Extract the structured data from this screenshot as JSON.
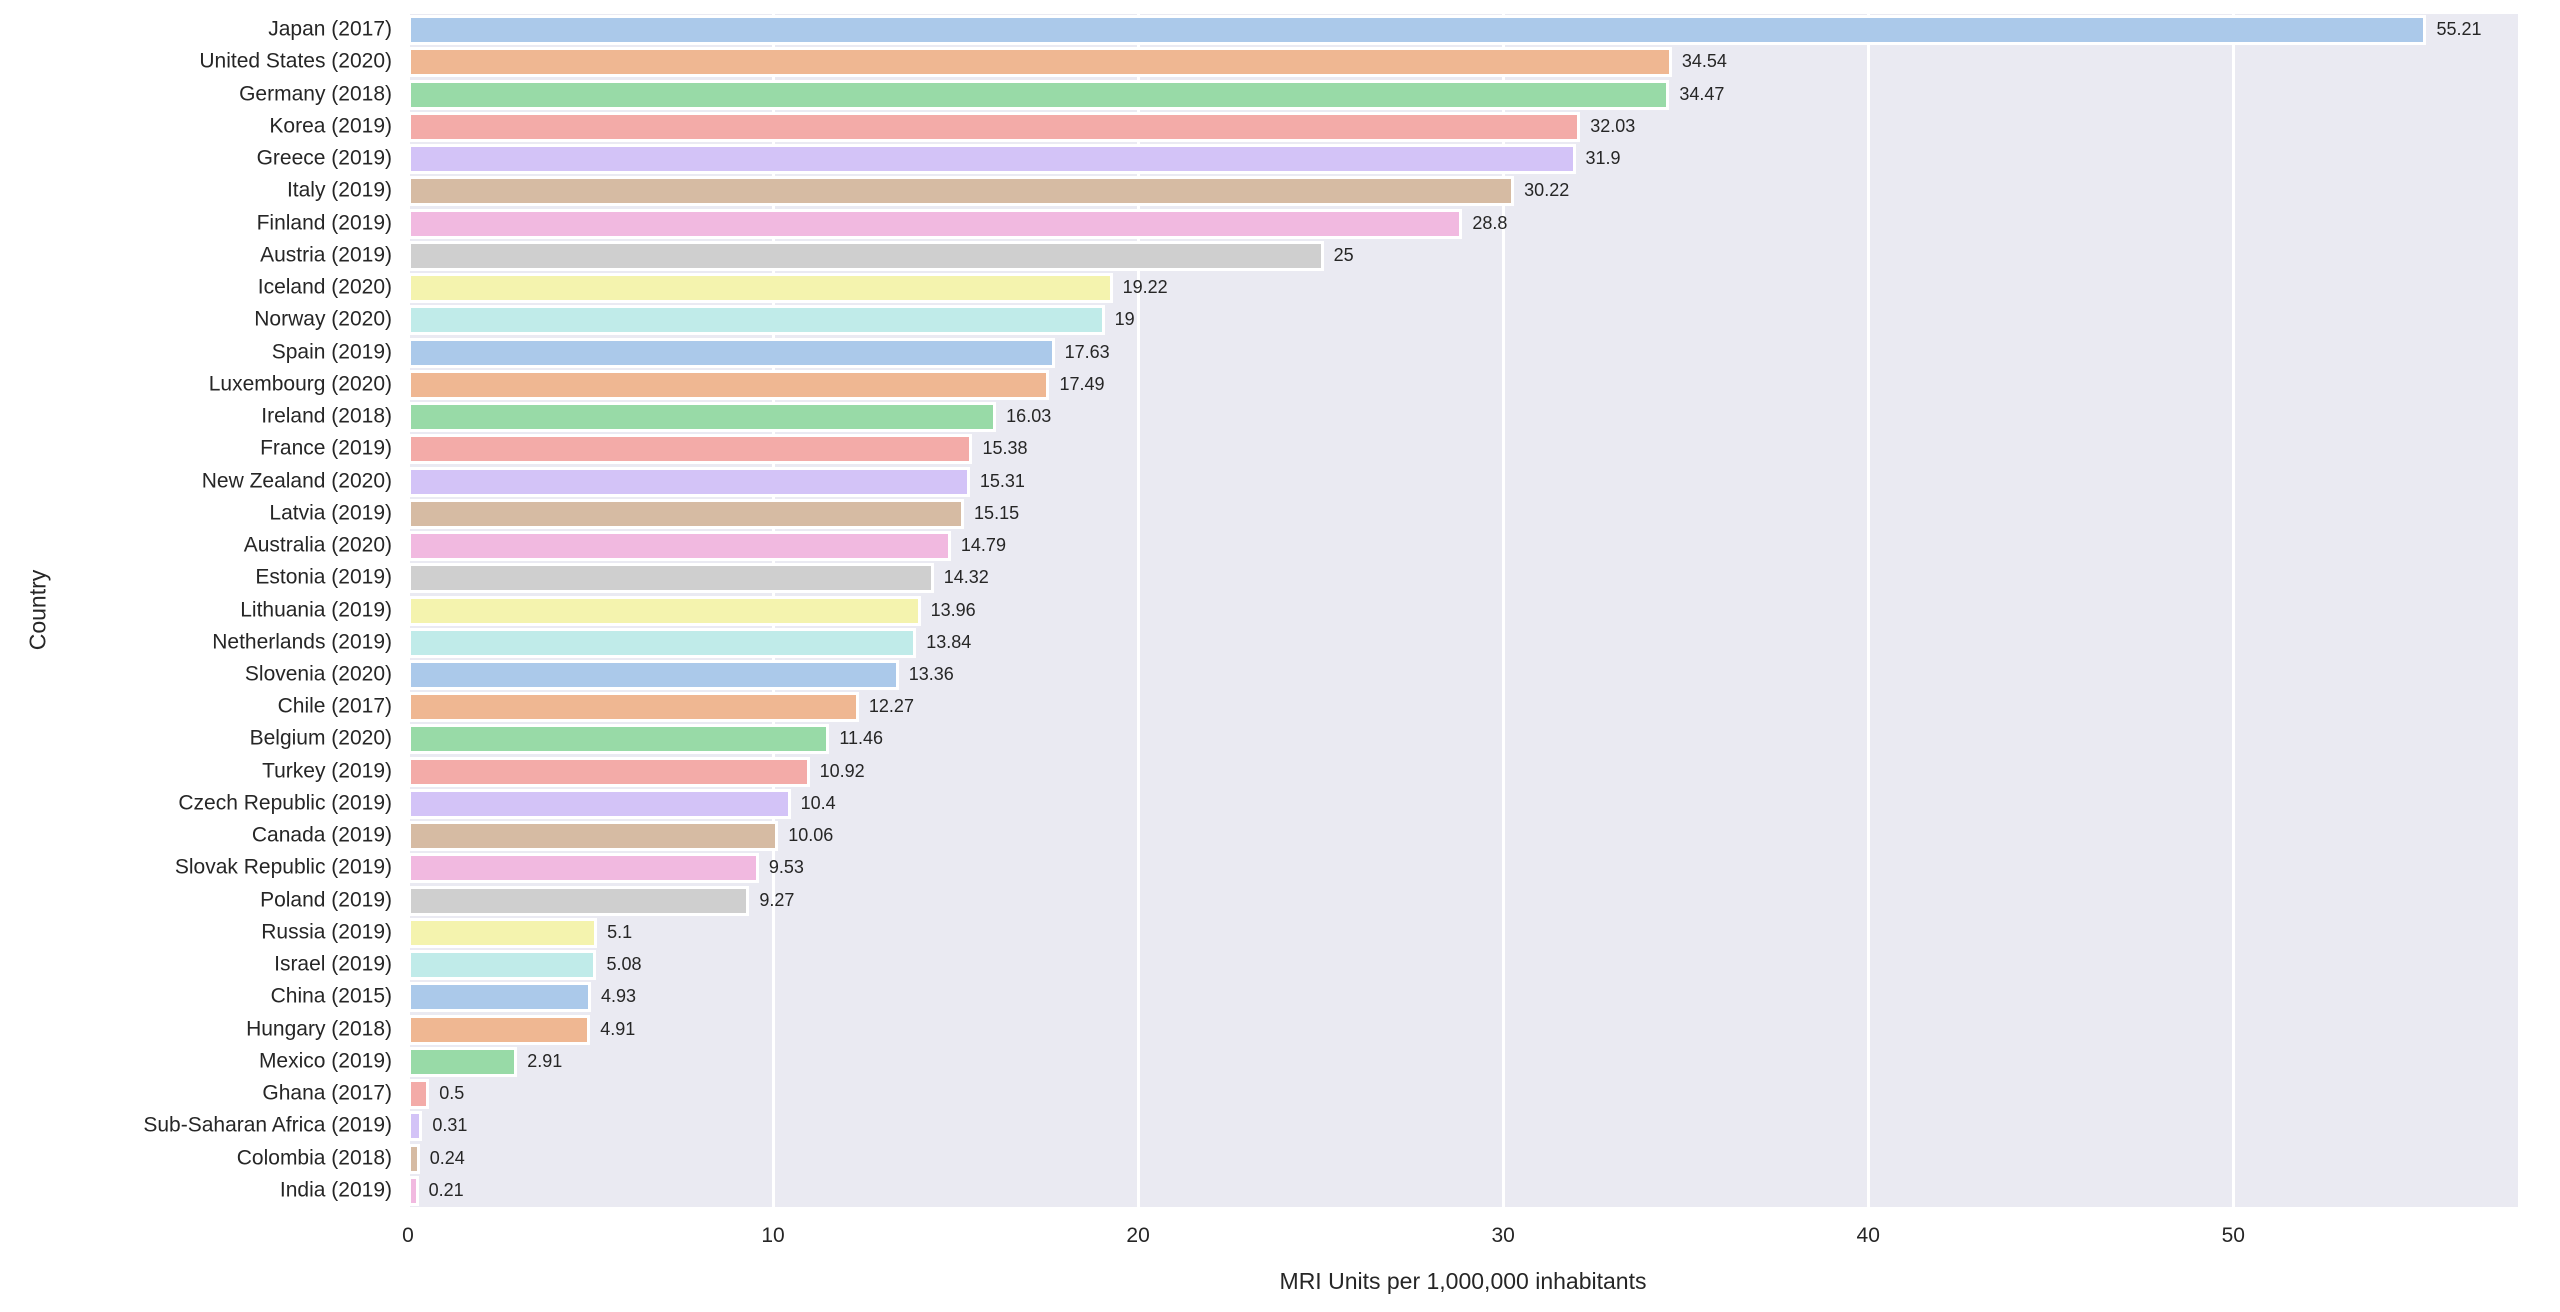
{
  "figure": {
    "background": "#ffffff",
    "plot_background": "#eaeaf2",
    "grid_color": "#ffffff",
    "text_color": "#262626",
    "bar_edge_color": "#ffffff"
  },
  "chart_data": {
    "type": "bar",
    "orientation": "horizontal",
    "title": "",
    "xlabel": "MRI Units per 1,000,000 inhabitants",
    "ylabel": "Country",
    "grid": true,
    "legend": false,
    "x_ticks": [
      0,
      10,
      20,
      30,
      40,
      50
    ],
    "xlim": [
      0,
      57.8
    ],
    "categories": [
      "Japan (2017)",
      "United States (2020)",
      "Germany (2018)",
      "Korea (2019)",
      "Greece (2019)",
      "Italy (2019)",
      "Finland (2019)",
      "Austria (2019)",
      "Iceland (2020)",
      "Norway (2020)",
      "Spain (2019)",
      "Luxembourg (2020)",
      "Ireland (2018)",
      "France (2019)",
      "New Zealand (2020)",
      "Latvia (2019)",
      "Australia (2020)",
      "Estonia (2019)",
      "Lithuania (2019)",
      "Netherlands (2019)",
      "Slovenia (2020)",
      "Chile (2017)",
      "Belgium (2020)",
      "Turkey (2019)",
      "Czech Republic (2019)",
      "Canada (2019)",
      "Slovak Republic (2019)",
      "Poland (2019)",
      "Russia (2019)",
      "Israel (2019)",
      "China (2015)",
      "Hungary (2018)",
      "Mexico (2019)",
      "Ghana (2017)",
      "Sub-Saharan Africa (2019)",
      "Colombia (2018)",
      "India (2019)"
    ],
    "values": [
      55.21,
      34.54,
      34.47,
      32.03,
      31.9,
      30.22,
      28.8,
      25,
      19.22,
      19,
      17.63,
      17.49,
      16.03,
      15.38,
      15.31,
      15.15,
      14.79,
      14.32,
      13.96,
      13.84,
      13.36,
      12.27,
      11.46,
      10.92,
      10.4,
      10.06,
      9.53,
      9.27,
      5.1,
      5.08,
      4.93,
      4.91,
      2.91,
      0.5,
      0.31,
      0.24,
      0.21
    ],
    "bar_colors_cycle": [
      "#abc9ea",
      "#efb792",
      "#98daa7",
      "#f3aba8",
      "#d3c3f7",
      "#d6bba3",
      "#f1b9e0",
      "#cfcfcf",
      "#f4f3ae",
      "#c0ebe9"
    ]
  }
}
